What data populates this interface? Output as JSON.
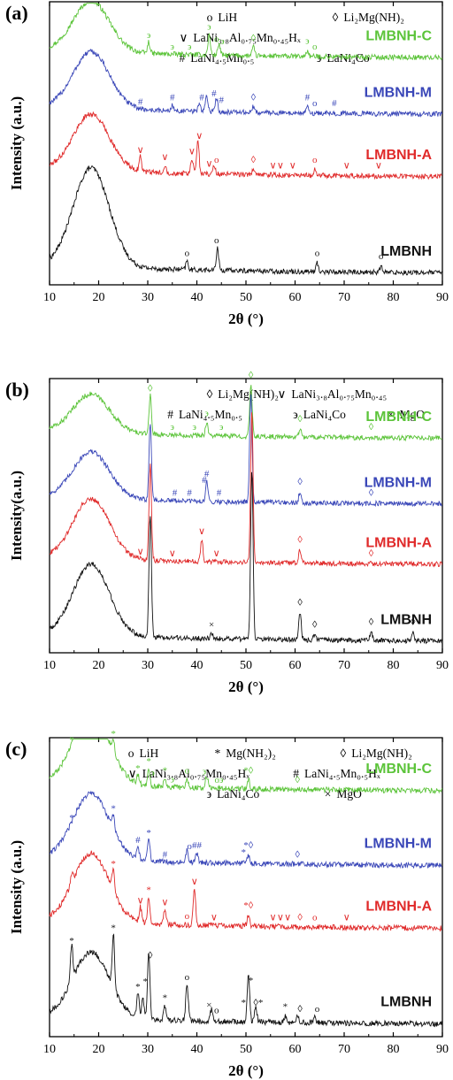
{
  "chart_data": [
    {
      "type": "line",
      "panel_label": "(a)",
      "xlabel": "2θ (°)",
      "ylabel": "Intensity (a.u.)",
      "xlim": [
        10,
        90
      ],
      "xticks": [
        "10",
        "20",
        "30",
        "40",
        "50",
        "60",
        "70",
        "80",
        "90"
      ],
      "grid": false,
      "legend": [
        {
          "symbol": "o",
          "label": "LiH"
        },
        {
          "symbol": "◊",
          "label": "Li₂Mg(NH)₂"
        },
        {
          "symbol": "∨",
          "label": "LaNi₃.₈Al₀.₇₅Mn₀.₄₅Hₓ"
        },
        {
          "symbol": "#",
          "label": "LaNi₄.₅Mn₀.₅"
        },
        {
          "symbol": "϶",
          "label": "LaNi₄Co"
        }
      ],
      "series": [
        {
          "name": "LMBNH-C",
          "color": "#5cc43a",
          "offset": 0.8,
          "hump": 0.18,
          "peaks": [
            [
              30.2,
              0.04
            ],
            [
              42.5,
              0.07
            ],
            [
              44.5,
              0.04
            ],
            [
              51.5,
              0.03
            ],
            [
              62.5,
              0.02
            ]
          ],
          "markers": [
            [
              30.2,
              "϶"
            ],
            [
              35,
              "϶"
            ],
            [
              38.5,
              "϶"
            ],
            [
              42.5,
              "϶"
            ],
            [
              44,
              "o"
            ],
            [
              45.2,
              "϶"
            ],
            [
              51.5,
              "◊"
            ],
            [
              62.5,
              "϶"
            ],
            [
              64,
              "o"
            ]
          ]
        },
        {
          "name": "LMBNH-M",
          "color": "#3a47b8",
          "offset": 0.6,
          "hump": 0.2,
          "peaks": [
            [
              35,
              0.02
            ],
            [
              40.5,
              0.03
            ],
            [
              42,
              0.06
            ],
            [
              44,
              0.05
            ],
            [
              51.5,
              0.02
            ],
            [
              62.5,
              0.02
            ]
          ],
          "markers": [
            [
              28.5,
              "#"
            ],
            [
              35,
              "#"
            ],
            [
              41,
              "#"
            ],
            [
              43.5,
              "#"
            ],
            [
              45,
              "#"
            ],
            [
              51.5,
              "◊"
            ],
            [
              62.5,
              "#"
            ],
            [
              64,
              "o"
            ],
            [
              68,
              "#"
            ]
          ]
        },
        {
          "name": "LMBNH-A",
          "color": "#e02a2a",
          "offset": 0.38,
          "hump": 0.2,
          "peaks": [
            [
              28.5,
              0.05
            ],
            [
              33.5,
              0.03
            ],
            [
              39,
              0.05
            ],
            [
              40.2,
              0.12
            ],
            [
              43.5,
              0.03
            ],
            [
              51.5,
              0.02
            ],
            [
              64,
              0.02
            ]
          ],
          "markers": [
            [
              28.5,
              "∨"
            ],
            [
              33.5,
              "∨"
            ],
            [
              39,
              "∨"
            ],
            [
              40.5,
              "∨"
            ],
            [
              42.5,
              "∨"
            ],
            [
              44,
              "o"
            ],
            [
              51.5,
              "◊"
            ],
            [
              55.5,
              "∨"
            ],
            [
              57,
              "∨"
            ],
            [
              59.5,
              "∨"
            ],
            [
              64,
              "o"
            ],
            [
              70.5,
              "∨"
            ],
            [
              77,
              "∨"
            ]
          ]
        },
        {
          "name": "LMBNH",
          "color": "#111111",
          "offset": 0.04,
          "hump": 0.35,
          "peaks": [
            [
              38,
              0.03
            ],
            [
              44.2,
              0.08
            ],
            [
              64.5,
              0.03
            ],
            [
              77.5,
              0.02
            ]
          ],
          "markers": [
            [
              38,
              "o"
            ],
            [
              44,
              "o"
            ],
            [
              64.5,
              "o"
            ],
            [
              77.5,
              "o"
            ]
          ]
        }
      ]
    },
    {
      "type": "line",
      "panel_label": "(b)",
      "xlabel": "2θ (°)",
      "ylabel": "Intensity(a.u.)",
      "xlim": [
        10,
        90
      ],
      "xticks": [
        "10",
        "20",
        "30",
        "40",
        "50",
        "60",
        "70",
        "80",
        "90"
      ],
      "grid": false,
      "legend": [
        {
          "symbol": "◊",
          "label": "Li₂Mg(NH)₂"
        },
        {
          "symbol": "∨",
          "label": "LaNi₃.₈Al₀.₇₅Mn₀.₄₅"
        },
        {
          "symbol": "#",
          "label": "LaNi₄.₅Mn₀.₅"
        },
        {
          "symbol": "϶",
          "label": "LaNi₄Co"
        },
        {
          "symbol": "×",
          "label": "MgO"
        }
      ],
      "series": [
        {
          "name": "LMBNH-C",
          "color": "#5cc43a",
          "offset": 0.78,
          "hump": 0.14,
          "peaks": [
            [
              30.5,
              0.14
            ],
            [
              42,
              0.05
            ],
            [
              51,
              0.19
            ],
            [
              61,
              0.03
            ]
          ],
          "markers": [
            [
              30.5,
              "◊"
            ],
            [
              35,
              "϶"
            ],
            [
              39.5,
              "϶"
            ],
            [
              42,
              "϶"
            ],
            [
              45,
              "϶"
            ],
            [
              51,
              "◊"
            ],
            [
              61,
              "◊"
            ],
            [
              75.5,
              "◊"
            ]
          ]
        },
        {
          "name": "LMBNH-M",
          "color": "#3a47b8",
          "offset": 0.54,
          "hump": 0.17,
          "peaks": [
            [
              30.5,
              0.28
            ],
            [
              42,
              0.07
            ],
            [
              51,
              0.4
            ],
            [
              61,
              0.04
            ]
          ],
          "markers": [
            [
              35.5,
              "#"
            ],
            [
              38.5,
              "#"
            ],
            [
              41.5,
              "#"
            ],
            [
              42,
              "#"
            ],
            [
              44.5,
              "#"
            ],
            [
              61,
              "◊"
            ],
            [
              75.5,
              "◊"
            ]
          ]
        },
        {
          "name": "LMBNH-A",
          "color": "#e02a2a",
          "offset": 0.32,
          "hump": 0.22,
          "peaks": [
            [
              30.5,
              0.35
            ],
            [
              41,
              0.08
            ],
            [
              51.2,
              0.55
            ],
            [
              61,
              0.05
            ]
          ],
          "markers": [
            [
              28.5,
              "∨"
            ],
            [
              35,
              "∨"
            ],
            [
              41,
              "∨"
            ],
            [
              44,
              "∨"
            ],
            [
              61,
              "◊"
            ],
            [
              75.5,
              "◊"
            ]
          ]
        },
        {
          "name": "LMBNH",
          "color": "#111111",
          "offset": 0.04,
          "hump": 0.26,
          "peaks": [
            [
              30.5,
              0.45
            ],
            [
              43,
              0.02
            ],
            [
              51.2,
              0.62
            ],
            [
              61,
              0.1
            ],
            [
              64,
              0.02
            ],
            [
              75.5,
              0.03
            ],
            [
              84,
              0.03
            ]
          ],
          "markers": [
            [
              43,
              "×"
            ],
            [
              61,
              "◊"
            ],
            [
              64,
              "◊"
            ],
            [
              75.5,
              "◊"
            ],
            [
              84,
              "◊"
            ]
          ]
        }
      ]
    },
    {
      "type": "line",
      "panel_label": "(c)",
      "xlabel": "2θ (°)",
      "ylabel": "Intensity (a.u.)",
      "xlim": [
        10,
        90
      ],
      "xticks": [
        "10",
        "20",
        "30",
        "40",
        "50",
        "60",
        "70",
        "80",
        "90"
      ],
      "grid": false,
      "legend": [
        {
          "symbol": "o",
          "label": "LiH"
        },
        {
          "symbol": "*",
          "label": "Mg(NH₂)₂"
        },
        {
          "symbol": "◊",
          "label": "Li₂Mg(NH)₂"
        },
        {
          "symbol": "∨",
          "label": "LaNi₃.₈Al₀.₇₅Mn₀.₄₅Hₓ"
        },
        {
          "symbol": "#",
          "label": "LaNi₄.₅Mn₀.₅Hₓ"
        },
        {
          "symbol": "϶",
          "label": "LaNi₄Co"
        },
        {
          "symbol": "×",
          "label": "MgO"
        }
      ],
      "series": [
        {
          "name": "LMBNH-C",
          "color": "#5cc43a",
          "offset": 0.82,
          "hump": 0.24,
          "peaks": [
            [
              23,
              0.04
            ],
            [
              28,
              0.03
            ],
            [
              30.2,
              0.06
            ],
            [
              33.5,
              0.03
            ],
            [
              38,
              0.03
            ],
            [
              42,
              0.04
            ],
            [
              50.5,
              0.03
            ]
          ],
          "markers": [
            [
              14.5,
              "*"
            ],
            [
              23,
              "*"
            ],
            [
              28,
              "*"
            ],
            [
              30.2,
              "*"
            ],
            [
              31,
              "϶"
            ],
            [
              33.5,
              "*"
            ],
            [
              35,
              "϶"
            ],
            [
              38,
              "o"
            ],
            [
              41.5,
              "϶"
            ],
            [
              44.5,
              "o϶"
            ],
            [
              50.5,
              "*◊"
            ],
            [
              60.5,
              "◊"
            ]
          ]
        },
        {
          "name": "LMBNH-M",
          "color": "#3a47b8",
          "offset": 0.57,
          "hump": 0.22,
          "peaks": [
            [
              23,
              0.05
            ],
            [
              28,
              0.04
            ],
            [
              30.2,
              0.07
            ],
            [
              38,
              0.04
            ],
            [
              40,
              0.03
            ],
            [
              50.5,
              0.03
            ]
          ],
          "markers": [
            [
              14.5,
              "*"
            ],
            [
              23,
              "*"
            ],
            [
              28,
              "#"
            ],
            [
              30.2,
              "*"
            ],
            [
              33.5,
              "#"
            ],
            [
              38.5,
              "o"
            ],
            [
              40,
              "##"
            ],
            [
              49.5,
              "*"
            ],
            [
              50.5,
              "*◊"
            ],
            [
              60.5,
              "◊"
            ]
          ]
        },
        {
          "name": "LMBNH-A",
          "color": "#e02a2a",
          "offset": 0.36,
          "hump": 0.23,
          "peaks": [
            [
              14.5,
              0.03
            ],
            [
              23,
              0.07
            ],
            [
              28.5,
              0.05
            ],
            [
              30.2,
              0.09
            ],
            [
              33.5,
              0.05
            ],
            [
              39.5,
              0.12
            ],
            [
              50.5,
              0.04
            ]
          ],
          "markers": [
            [
              23,
              "*"
            ],
            [
              28.5,
              "∨"
            ],
            [
              30.2,
              "*"
            ],
            [
              33.5,
              "∨"
            ],
            [
              38,
              "o"
            ],
            [
              39.5,
              "∨"
            ],
            [
              43.5,
              "∨"
            ],
            [
              50.5,
              "*◊"
            ],
            [
              55.5,
              "∨"
            ],
            [
              57,
              "∨"
            ],
            [
              58.5,
              "∨"
            ],
            [
              61,
              "◊"
            ],
            [
              64,
              "o"
            ],
            [
              70.5,
              "∨"
            ]
          ]
        },
        {
          "name": "LMBNH",
          "color": "#111111",
          "offset": 0.04,
          "hump": 0.22,
          "peaks": [
            [
              14.5,
              0.12
            ],
            [
              23,
              0.18
            ],
            [
              28,
              0.08
            ],
            [
              29,
              0.07
            ],
            [
              30.2,
              0.22
            ],
            [
              33.5,
              0.05
            ],
            [
              38,
              0.12
            ],
            [
              43,
              0.04
            ],
            [
              50.5,
              0.16
            ],
            [
              52,
              0.05
            ],
            [
              58,
              0.02
            ],
            [
              60.5,
              0.02
            ],
            [
              64,
              0.02
            ]
          ],
          "markers": [
            [
              14.5,
              "*"
            ],
            [
              23,
              "*"
            ],
            [
              28,
              "*"
            ],
            [
              29.5,
              "*"
            ],
            [
              30.5,
              "◊"
            ],
            [
              33.5,
              "*"
            ],
            [
              38,
              "o"
            ],
            [
              42.5,
              "×"
            ],
            [
              44,
              "o"
            ],
            [
              49.5,
              "*"
            ],
            [
              51,
              "*"
            ],
            [
              52.5,
              "◊*"
            ],
            [
              58,
              "*"
            ],
            [
              61,
              "◊"
            ],
            [
              64.5,
              "o"
            ]
          ]
        }
      ]
    }
  ]
}
